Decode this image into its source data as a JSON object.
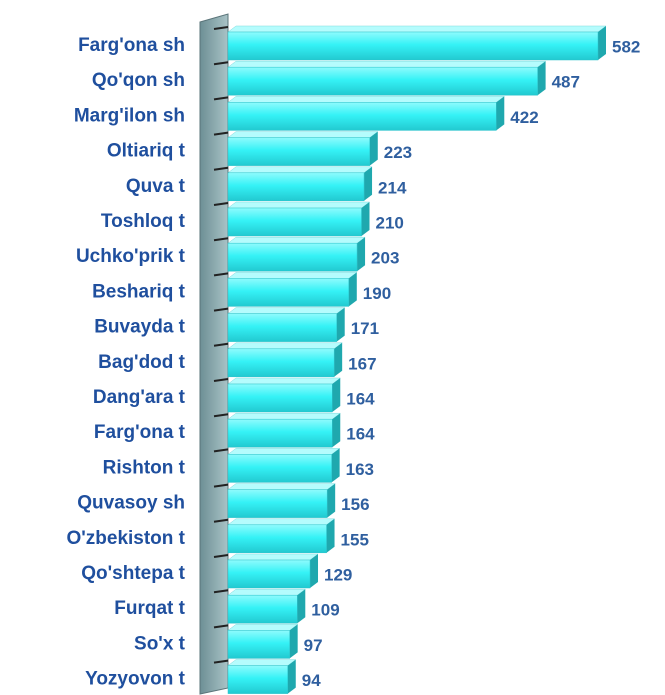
{
  "chart_data": {
    "type": "bar",
    "orientation": "horizontal",
    "color": "#33f0f5",
    "categories": [
      "Farg'ona sh",
      "Qo'qon sh",
      "Marg'ilon sh",
      "Oltiariq t",
      "Quva t",
      "Toshloq t",
      "Uchko'prik t",
      "Beshariq t",
      "Buvayda t",
      "Bag'dod t",
      "Dang'ara t",
      "Farg'ona t",
      "Rishton t",
      "Quvasoy sh",
      "O'zbekiston t",
      "Qo'shtepa t",
      "Furqat t",
      "So'x t",
      "Yozyovon t"
    ],
    "values": [
      582,
      487,
      422,
      223,
      214,
      210,
      203,
      190,
      171,
      167,
      164,
      164,
      163,
      156,
      155,
      129,
      109,
      97,
      94
    ]
  }
}
